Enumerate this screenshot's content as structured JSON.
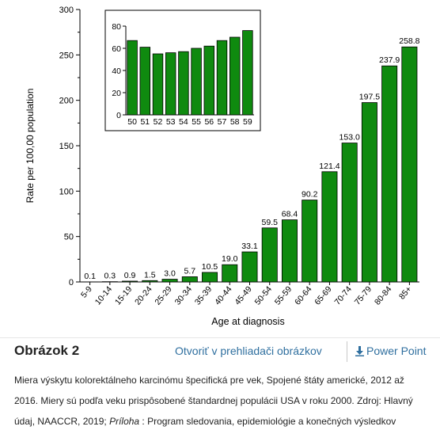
{
  "chart_data": [
    {
      "type": "bar",
      "ylabel": "Rate per 100,00 population",
      "xlabel": "Age at diagnosis",
      "ylim": [
        0,
        300
      ],
      "yticks": [
        0,
        50,
        100,
        150,
        200,
        250,
        300
      ],
      "categories": [
        "5-9",
        "10-14",
        "15-19",
        "20-24",
        "25-29",
        "30-34",
        "35-39",
        "40-44",
        "45-49",
        "50-54",
        "55-59",
        "60-64",
        "65-69",
        "70-74",
        "75-79",
        "80-84",
        "85+"
      ],
      "values": [
        0.1,
        0.3,
        0.9,
        1.5,
        3.0,
        5.7,
        10.5,
        19.0,
        33.1,
        59.5,
        68.4,
        90.2,
        121.4,
        153.0,
        197.5,
        237.9,
        258.8
      ],
      "value_labels": [
        "0.1",
        "0.3",
        "0.9",
        "1.5",
        "3.0",
        "5.7",
        "10.5",
        "19.0",
        "33.1",
        "59.5",
        "68.4",
        "90.2",
        "121.4",
        "153.0",
        "197.5",
        "237.9",
        "258.8"
      ],
      "bar_color": "#0f8a0f",
      "grid": false
    },
    {
      "type": "bar",
      "placement": "inset top-left",
      "ylim": [
        0,
        80
      ],
      "yticks": [
        0,
        20,
        40,
        60,
        80
      ],
      "categories": [
        "50",
        "51",
        "52",
        "53",
        "54",
        "55",
        "56",
        "57",
        "58",
        "59"
      ],
      "values": [
        67,
        61,
        55,
        56,
        57,
        60,
        62,
        67,
        70,
        76
      ],
      "bar_color": "#0f8a0f",
      "grid": false
    }
  ],
  "toolbar": {
    "figure_label": "Obrázok 2",
    "open_label": "Otvoriť v prehliadači obrázkov",
    "ppt_label": "Power Point",
    "accent_color": "#2f6f9f",
    "ppt_icon": "download-arrow-icon"
  },
  "caption": {
    "text": "Miera výskytu kolorektálneho karcinómu špecifická pre vek, Spojené štáty americké, 2012 až 2016. Miery sú podľa veku prispôsobené štandardnej populácii USA v roku 2000. Zdroj: Hlavný údaj, NAACCR, 2019; ",
    "italic": "Príloha",
    "tail": " : Program sledovania, epidemiológie a konečných výsledkov"
  }
}
